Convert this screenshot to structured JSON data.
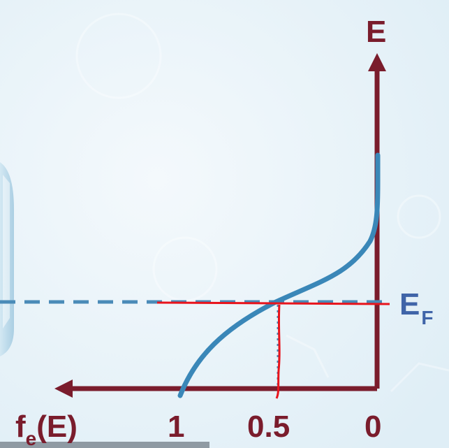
{
  "labels": {
    "energy_axis": "E",
    "fermi_main": "E",
    "fermi_sub": "F",
    "f_axis_main": "f",
    "f_axis_sub": "e",
    "f_axis_rest": "(E)",
    "tick_1": "1",
    "tick_half": "0.5",
    "tick_0": "0"
  },
  "colors": {
    "axis": "#7a1c2c",
    "curve": "#3a87b8",
    "dashed": "#4a8bb8",
    "annotation": "#e8141c",
    "fermi_label": "#3f64a8"
  },
  "icons": {
    "arrowhead": "arrow-icon"
  }
}
